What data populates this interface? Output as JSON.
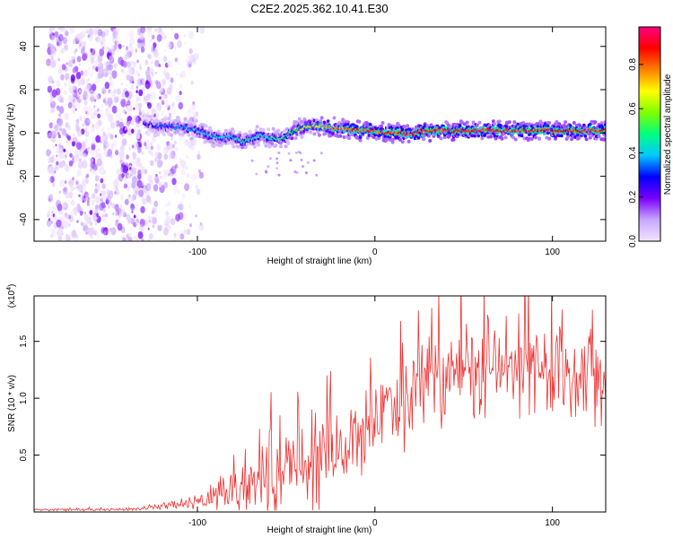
{
  "chart_data": [
    {
      "type": "heatmap",
      "title": "C2E2.2025.362.10.41.E30",
      "xlabel": "Height of straight line (km)",
      "ylabel": "Frequency (Hz)",
      "xlim": [
        -192,
        130
      ],
      "ylim": [
        -50,
        49
      ],
      "x_ticks": [
        -100,
        0,
        100
      ],
      "y_ticks": [
        -40,
        -20,
        0,
        20,
        40
      ],
      "colorbar": {
        "label": "Normalized spectral amplitude",
        "range": [
          0.0,
          0.97
        ],
        "ticks": [
          "0.0",
          "0.2",
          "0.4",
          "0.6",
          "0.8"
        ],
        "colors": [
          "#f2e6ff",
          "#c8a6ff",
          "#7a00ff",
          "#0000ff",
          "#00c8ff",
          "#00ff80",
          "#80ff00",
          "#ffff00",
          "#ff8000",
          "#ff0000",
          "#ff0080"
        ]
      },
      "noise_region_x": [
        -192,
        -105
      ],
      "signal_start_x": -130,
      "track": {
        "x": [
          -130,
          -120,
          -110,
          -100,
          -90,
          -80,
          -75,
          -70,
          -65,
          -60,
          -55,
          -50,
          -45,
          -40,
          -35,
          -30,
          -20,
          -10,
          0,
          10,
          20,
          30,
          40,
          50,
          60,
          70,
          80,
          90,
          100,
          110,
          120,
          130
        ],
        "frequency": [
          4,
          3,
          3,
          1,
          -2,
          -2,
          -4,
          -3,
          -1,
          -2,
          -3,
          -2,
          1,
          3,
          3,
          3,
          2,
          1,
          1,
          0,
          0,
          1,
          1,
          1,
          1,
          1,
          1,
          1,
          1,
          1,
          1,
          1
        ],
        "peak_amplitude": [
          0.3,
          0.35,
          0.4,
          0.45,
          0.45,
          0.45,
          0.5,
          0.5,
          0.5,
          0.5,
          0.55,
          0.55,
          0.6,
          0.7,
          0.75,
          0.8,
          0.85,
          0.9,
          0.92,
          0.93,
          0.94,
          0.95,
          0.95,
          0.95,
          0.95,
          0.95,
          0.95,
          0.95,
          0.95,
          0.95,
          0.95,
          0.95
        ]
      }
    },
    {
      "type": "line",
      "xlabel": "Height of straight line (km)",
      "ylabel": "SNR (10 * v/v)",
      "y_exponent_label": "(x10",
      "y_exponent_power": "4",
      "y_exponent_close": ")",
      "xlim": [
        -192,
        130
      ],
      "ylim": [
        0,
        1.9
      ],
      "x_ticks": [
        -100,
        0,
        100
      ],
      "y_ticks": [
        "0.5",
        "1.0",
        "1.5"
      ],
      "color": "#ee3333",
      "series": [
        {
          "name": "SNR",
          "x": [
            -192,
            -180,
            -170,
            -160,
            -150,
            -140,
            -130,
            -125,
            -120,
            -115,
            -110,
            -105,
            -100,
            -95,
            -90,
            -85,
            -80,
            -75,
            -70,
            -65,
            -60,
            -55,
            -50,
            -45,
            -40,
            -35,
            -30,
            -25,
            -20,
            -15,
            -10,
            -5,
            0,
            5,
            10,
            15,
            20,
            25,
            30,
            35,
            40,
            45,
            50,
            55,
            60,
            65,
            70,
            75,
            80,
            85,
            90,
            95,
            100,
            105,
            110,
            115,
            120,
            125,
            130
          ],
          "mean": [
            0.02,
            0.02,
            0.02,
            0.02,
            0.02,
            0.02,
            0.03,
            0.04,
            0.05,
            0.06,
            0.06,
            0.07,
            0.09,
            0.12,
            0.15,
            0.18,
            0.2,
            0.23,
            0.26,
            0.3,
            0.32,
            0.36,
            0.38,
            0.42,
            0.45,
            0.47,
            0.5,
            0.52,
            0.55,
            0.6,
            0.68,
            0.75,
            0.8,
            0.85,
            0.9,
            0.96,
            1.05,
            1.15,
            1.2,
            1.22,
            1.24,
            1.25,
            1.25,
            1.25,
            1.26,
            1.27,
            1.27,
            1.26,
            1.25,
            1.24,
            1.25,
            1.26,
            1.25,
            1.24,
            1.25,
            1.26,
            1.25,
            1.26,
            1.27
          ],
          "spread": [
            0.01,
            0.01,
            0.01,
            0.01,
            0.01,
            0.01,
            0.015,
            0.02,
            0.025,
            0.03,
            0.04,
            0.05,
            0.07,
            0.1,
            0.12,
            0.15,
            0.2,
            0.22,
            0.25,
            0.28,
            0.3,
            0.32,
            0.35,
            0.38,
            0.4,
            0.42,
            0.4,
            0.4,
            0.38,
            0.36,
            0.35,
            0.33,
            0.3,
            0.3,
            0.3,
            0.32,
            0.35,
            0.38,
            0.4,
            0.42,
            0.42,
            0.42,
            0.42,
            0.42,
            0.42,
            0.42,
            0.42,
            0.42,
            0.42,
            0.42,
            0.42,
            0.42,
            0.42,
            0.4,
            0.4,
            0.4,
            0.4,
            0.4,
            0.4
          ]
        }
      ]
    }
  ]
}
